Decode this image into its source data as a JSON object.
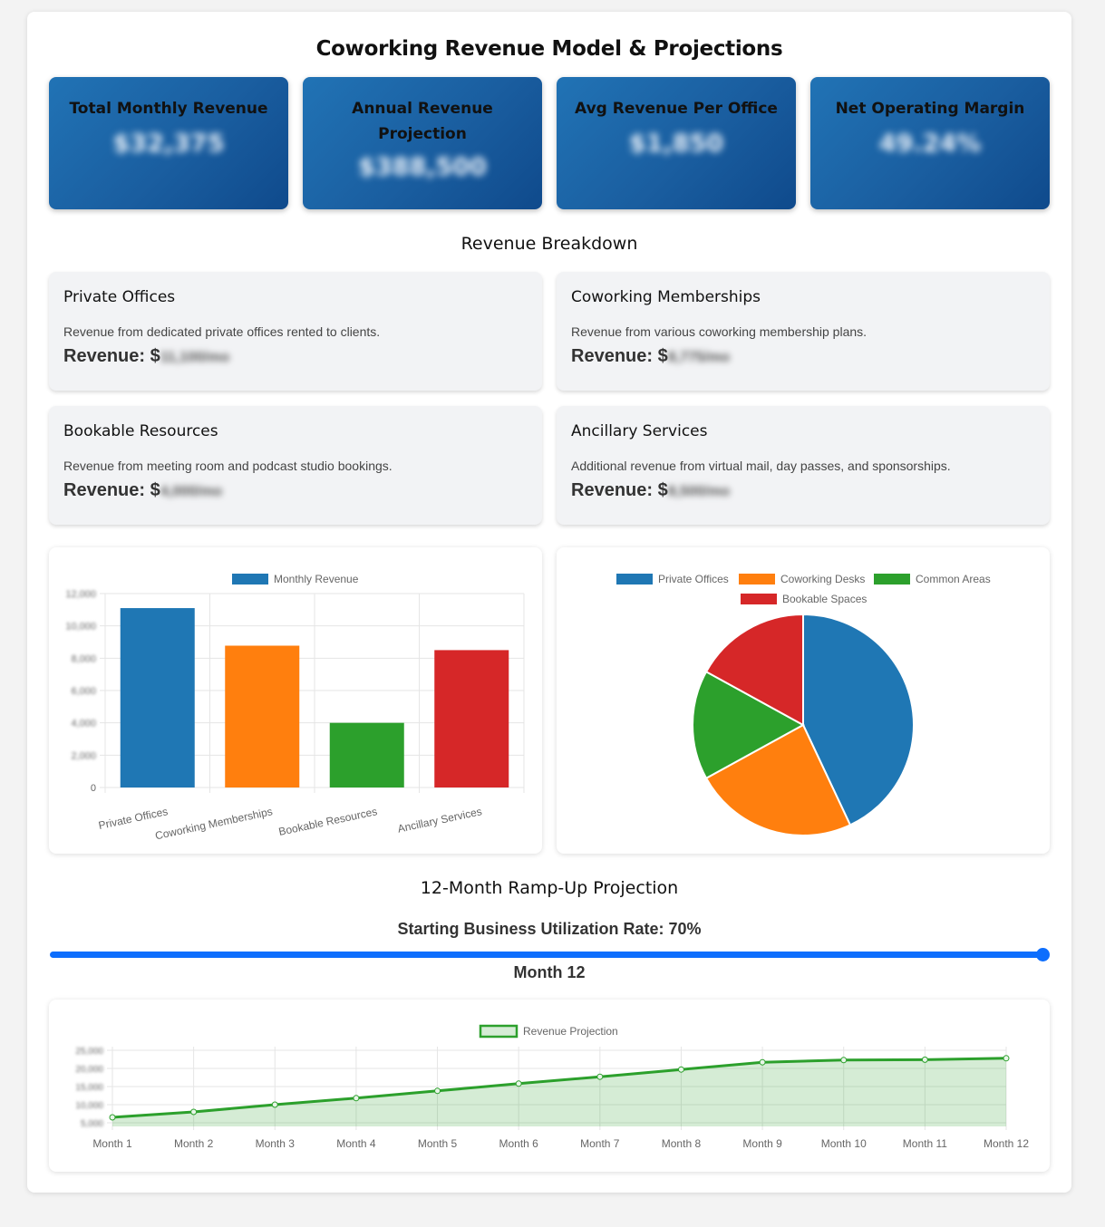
{
  "page_title": "Coworking Revenue Model & Projections",
  "kpis": [
    {
      "label": "Total Monthly Revenue",
      "value": "$32,375"
    },
    {
      "label": "Annual Revenue Projection",
      "value": "$388,500"
    },
    {
      "label": "Avg Revenue Per Office",
      "value": "$1,850"
    },
    {
      "label": "Net Operating Margin",
      "value": "49.24%"
    }
  ],
  "breakdown": {
    "title": "Revenue Breakdown",
    "revenue_prefix": "Revenue: $",
    "cards": [
      {
        "title": "Private Offices",
        "desc": "Revenue from dedicated private offices rented to clients.",
        "value": "11,100/mo"
      },
      {
        "title": "Coworking Memberships",
        "desc": "Revenue from various coworking membership plans.",
        "value": "8,775/mo"
      },
      {
        "title": "Bookable Resources",
        "desc": "Revenue from meeting room and podcast studio bookings.",
        "value": "4,000/mo"
      },
      {
        "title": "Ancillary Services",
        "desc": "Additional revenue from virtual mail, day passes, and sponsorships.",
        "value": "8,500/mo"
      }
    ]
  },
  "colors": {
    "blue": "#1f77b4",
    "orange": "#ff7f0e",
    "green": "#2ca02c",
    "red": "#d62728",
    "accent": "#0d6efd",
    "kpi_gradient": "#1a5ea0"
  },
  "chart_data": [
    {
      "type": "bar",
      "legend": [
        "Monthly Revenue"
      ],
      "categories": [
        "Private Offices",
        "Coworking Memberships",
        "Bookable Resources",
        "Ancillary Services"
      ],
      "series": [
        {
          "name": "Monthly Revenue",
          "values": [
            11100,
            8775,
            4000,
            8500
          ]
        }
      ],
      "yticks": [
        "0",
        "2,000",
        "4,000",
        "6,000",
        "8,000",
        "10,000",
        "12,000"
      ],
      "ylim": [
        0,
        12000
      ],
      "grid": true,
      "legend_position": "top"
    },
    {
      "type": "pie",
      "legend": [
        "Private Offices",
        "Coworking Desks",
        "Common Areas",
        "Bookable Spaces"
      ],
      "values": [
        43,
        24,
        16,
        17
      ],
      "legend_position": "top"
    },
    {
      "type": "area",
      "legend": [
        "Revenue Projection"
      ],
      "categories": [
        "Month 1",
        "Month 2",
        "Month 3",
        "Month 4",
        "Month 5",
        "Month 6",
        "Month 7",
        "Month 8",
        "Month 9",
        "Month 10",
        "Month 11",
        "Month 12"
      ],
      "series": [
        {
          "name": "Revenue Projection",
          "values": [
            6500,
            8000,
            10000,
            11800,
            13800,
            15800,
            17700,
            19700,
            21700,
            22300,
            22400,
            22800
          ]
        }
      ],
      "yticks": [
        "5,000",
        "10,000",
        "15,000",
        "20,000",
        "25,000"
      ],
      "ylim": [
        4000,
        26000
      ],
      "grid": true,
      "legend_position": "top"
    }
  ],
  "ramp": {
    "title": "12-Month Ramp-Up Projection",
    "slider_label": "Starting Business Utilization Rate: 70%",
    "utilization": 70,
    "month_label": "Month 12",
    "month_value": 12,
    "month_max": 12
  }
}
